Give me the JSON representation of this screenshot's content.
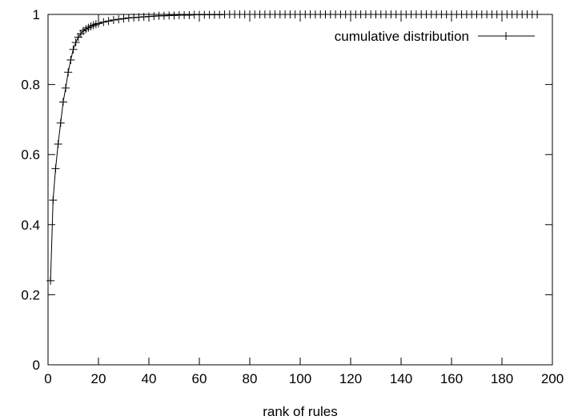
{
  "chart_data": {
    "type": "line",
    "title": "",
    "xlabel": "rank of rules",
    "ylabel": "",
    "xlim": [
      0,
      200
    ],
    "ylim": [
      0,
      1
    ],
    "xticks": [
      "0",
      "20",
      "40",
      "60",
      "80",
      "100",
      "120",
      "140",
      "160",
      "180",
      "200"
    ],
    "yticks": [
      "0",
      "0.2",
      "0.4",
      "0.6",
      "0.8",
      "1"
    ],
    "grid": false,
    "legend_position": "top-right",
    "marker": "plus",
    "color": "#000000",
    "series": [
      {
        "name": "cumulative distribution",
        "x": [
          1,
          2,
          3,
          4,
          5,
          6,
          7,
          8,
          9,
          10,
          11,
          12,
          13,
          14,
          15,
          16,
          17,
          18,
          19,
          20,
          22,
          24,
          26,
          28,
          30,
          32,
          34,
          36,
          38,
          40,
          42,
          44,
          46,
          48,
          50,
          52,
          54,
          56,
          58,
          60,
          62,
          64,
          66,
          68,
          70,
          72,
          74,
          76,
          78,
          80,
          82,
          84,
          86,
          88,
          90,
          92,
          94,
          96,
          98,
          100,
          102,
          104,
          106,
          108,
          110,
          112,
          114,
          116,
          118,
          120,
          122,
          124,
          126,
          128,
          130,
          132,
          134,
          136,
          138,
          140,
          142,
          144,
          146,
          148,
          150,
          152,
          154,
          156,
          158,
          160,
          162,
          164,
          166,
          168,
          170,
          172,
          174,
          176,
          178,
          180,
          182,
          184,
          186,
          188,
          190,
          192,
          194
        ],
        "y": [
          0.24,
          0.47,
          0.56,
          0.63,
          0.69,
          0.75,
          0.79,
          0.835,
          0.87,
          0.9,
          0.92,
          0.935,
          0.945,
          0.953,
          0.958,
          0.962,
          0.966,
          0.969,
          0.972,
          0.974,
          0.978,
          0.981,
          0.984,
          0.986,
          0.988,
          0.99,
          0.991,
          0.992,
          0.993,
          0.994,
          0.995,
          0.996,
          0.996,
          0.997,
          0.997,
          0.998,
          0.998,
          0.998,
          0.999,
          0.999,
          0.999,
          0.999,
          0.999,
          0.999,
          1,
          1,
          1,
          1,
          1,
          1,
          1,
          1,
          1,
          1,
          1,
          1,
          1,
          1,
          1,
          1,
          1,
          1,
          1,
          1,
          1,
          1,
          1,
          1,
          1,
          1,
          1,
          1,
          1,
          1,
          1,
          1,
          1,
          1,
          1,
          1,
          1,
          1,
          1,
          1,
          1,
          1,
          1,
          1,
          1,
          1,
          1,
          1,
          1,
          1,
          1,
          1,
          1,
          1,
          1,
          1,
          1,
          1,
          1,
          1,
          1,
          1,
          1
        ]
      }
    ]
  }
}
